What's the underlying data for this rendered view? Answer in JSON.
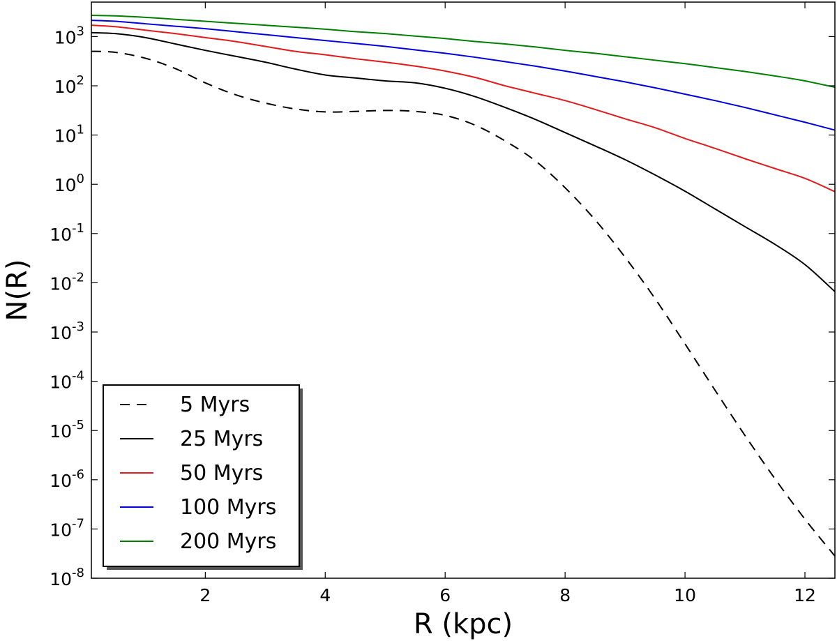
{
  "chart_data": {
    "type": "line",
    "title": "",
    "xlabel": "R (kpc)",
    "ylabel": "N(R)",
    "xlim": [
      0.1,
      12.5
    ],
    "ylim_log10": [
      -8,
      3.7
    ],
    "yscale": "log",
    "x_ticks": [
      {
        "value": 2,
        "label": "2"
      },
      {
        "value": 4,
        "label": "4"
      },
      {
        "value": 6,
        "label": "6"
      },
      {
        "value": 8,
        "label": "8"
      },
      {
        "value": 10,
        "label": "10"
      },
      {
        "value": 12,
        "label": "12"
      }
    ],
    "y_ticks": [
      {
        "exp": 3,
        "base": "10",
        "sup": "3"
      },
      {
        "exp": 2,
        "base": "10",
        "sup": "2"
      },
      {
        "exp": 1,
        "base": "10",
        "sup": "1"
      },
      {
        "exp": 0,
        "base": "10",
        "sup": "0"
      },
      {
        "exp": -1,
        "base": "10",
        "sup": "-1"
      },
      {
        "exp": -2,
        "base": "10",
        "sup": "-2"
      },
      {
        "exp": -3,
        "base": "10",
        "sup": "-3"
      },
      {
        "exp": -4,
        "base": "10",
        "sup": "-4"
      },
      {
        "exp": -5,
        "base": "10",
        "sup": "-5"
      },
      {
        "exp": -6,
        "base": "10",
        "sup": "-6"
      },
      {
        "exp": -7,
        "base": "10",
        "sup": "-7"
      },
      {
        "exp": -8,
        "base": "10",
        "sup": "-8"
      }
    ],
    "legend_position": "lower-left",
    "series": [
      {
        "name": "5 Myrs",
        "color": "#000000",
        "dash": true,
        "x": [
          0.1,
          0.5,
          1.0,
          1.5,
          2.0,
          2.5,
          3.0,
          3.5,
          4.0,
          4.5,
          5.0,
          5.5,
          6.0,
          6.5,
          7.0,
          7.5,
          8.0,
          8.5,
          9.0,
          9.5,
          10.0,
          10.5,
          11.0,
          11.5,
          12.0,
          12.5
        ],
        "log10_y": [
          2.7,
          2.68,
          2.56,
          2.35,
          2.06,
          1.82,
          1.65,
          1.53,
          1.47,
          1.48,
          1.5,
          1.48,
          1.4,
          1.2,
          0.88,
          0.48,
          -0.07,
          -0.72,
          -1.48,
          -2.32,
          -3.24,
          -4.18,
          -5.1,
          -5.98,
          -6.8,
          -7.55
        ]
      },
      {
        "name": "25 Myrs",
        "color": "#000000",
        "dash": false,
        "x": [
          0.1,
          0.5,
          1.0,
          1.5,
          2.0,
          2.5,
          3.0,
          3.5,
          4.0,
          4.5,
          5.0,
          5.5,
          6.0,
          6.5,
          7.0,
          7.5,
          8.0,
          8.5,
          9.0,
          9.5,
          10.0,
          10.5,
          11.0,
          11.5,
          12.0,
          12.5
        ],
        "log10_y": [
          3.08,
          3.06,
          2.98,
          2.85,
          2.72,
          2.6,
          2.48,
          2.34,
          2.22,
          2.16,
          2.1,
          2.06,
          1.95,
          1.78,
          1.56,
          1.32,
          1.05,
          0.78,
          0.5,
          0.19,
          -0.14,
          -0.5,
          -0.86,
          -1.22,
          -1.63,
          -2.18
        ]
      },
      {
        "name": "50 Myrs",
        "color": "#e31a1c",
        "dash": false,
        "x": [
          0.1,
          0.5,
          1.0,
          1.5,
          2.0,
          2.5,
          3.0,
          3.5,
          4.0,
          4.5,
          5.0,
          5.5,
          6.0,
          6.5,
          7.0,
          7.5,
          8.0,
          8.5,
          9.0,
          9.5,
          10.0,
          10.5,
          11.0,
          11.5,
          12.0,
          12.5
        ],
        "log10_y": [
          3.23,
          3.2,
          3.13,
          3.06,
          2.98,
          2.9,
          2.8,
          2.7,
          2.63,
          2.55,
          2.48,
          2.4,
          2.3,
          2.17,
          2.0,
          1.85,
          1.7,
          1.52,
          1.33,
          1.15,
          0.93,
          0.73,
          0.52,
          0.32,
          0.12,
          -0.15
        ]
      },
      {
        "name": "100 Myrs",
        "color": "#0000dd",
        "dash": false,
        "x": [
          0.1,
          0.5,
          1.0,
          1.5,
          2.0,
          2.5,
          3.0,
          3.5,
          4.0,
          4.5,
          5.0,
          5.5,
          6.0,
          6.5,
          7.0,
          7.5,
          8.0,
          8.5,
          9.0,
          9.5,
          10.0,
          10.5,
          11.0,
          11.5,
          12.0,
          12.5
        ],
        "log10_y": [
          3.33,
          3.31,
          3.26,
          3.21,
          3.16,
          3.1,
          3.04,
          2.98,
          2.92,
          2.86,
          2.8,
          2.73,
          2.66,
          2.58,
          2.49,
          2.4,
          2.3,
          2.19,
          2.08,
          1.96,
          1.83,
          1.7,
          1.56,
          1.41,
          1.26,
          1.1
        ]
      },
      {
        "name": "200 Myrs",
        "color": "#008000",
        "dash": false,
        "x": [
          0.1,
          0.5,
          1.0,
          1.5,
          2.0,
          2.5,
          3.0,
          3.5,
          4.0,
          4.5,
          5.0,
          5.5,
          6.0,
          6.5,
          7.0,
          7.5,
          8.0,
          8.5,
          9.0,
          9.5,
          10.0,
          10.5,
          11.0,
          11.5,
          12.0,
          12.5
        ],
        "log10_y": [
          3.43,
          3.42,
          3.39,
          3.35,
          3.31,
          3.27,
          3.23,
          3.19,
          3.15,
          3.1,
          3.06,
          3.01,
          2.96,
          2.9,
          2.85,
          2.79,
          2.72,
          2.66,
          2.59,
          2.52,
          2.45,
          2.37,
          2.29,
          2.2,
          2.1,
          1.97
        ]
      }
    ]
  }
}
